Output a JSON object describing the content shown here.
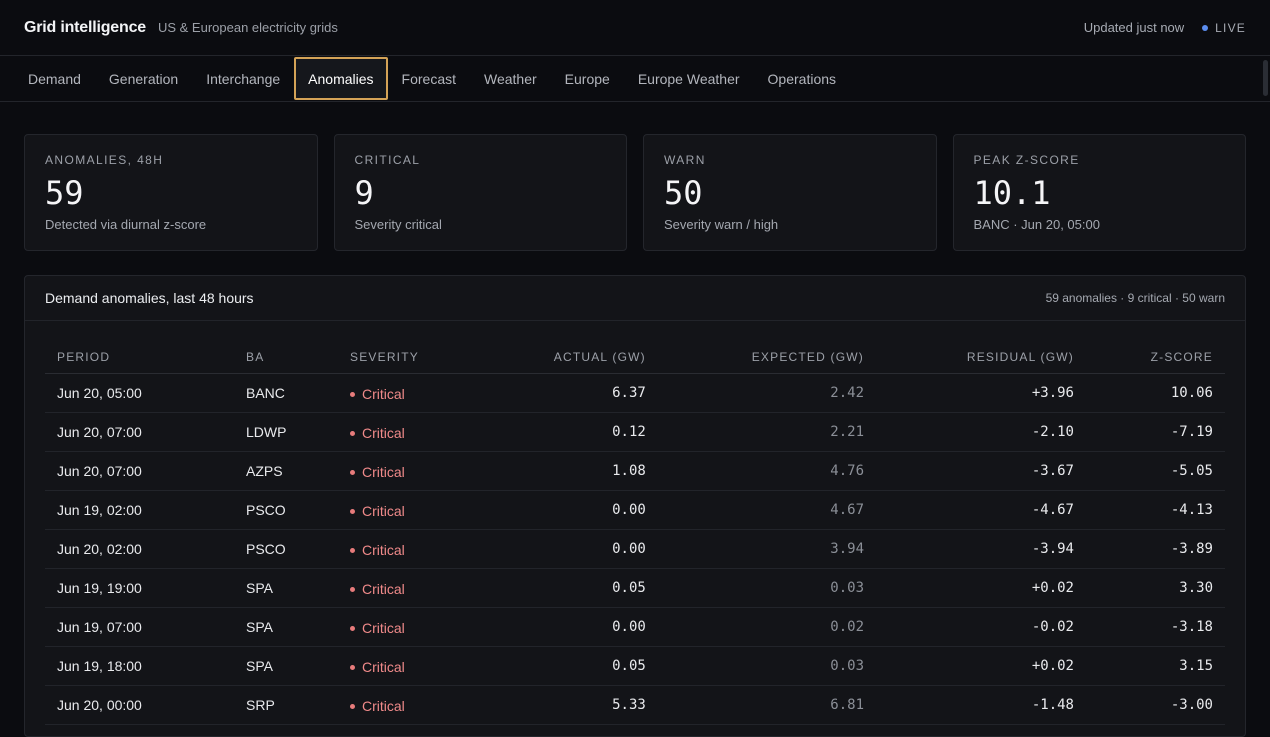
{
  "header": {
    "title": "Grid intelligence",
    "subtitle": "US & European electricity grids",
    "updated": "Updated just now",
    "live": "LIVE"
  },
  "tabs": [
    {
      "label": "Demand"
    },
    {
      "label": "Generation"
    },
    {
      "label": "Interchange"
    },
    {
      "label": "Anomalies"
    },
    {
      "label": "Forecast"
    },
    {
      "label": "Weather"
    },
    {
      "label": "Europe"
    },
    {
      "label": "Europe Weather"
    },
    {
      "label": "Operations"
    }
  ],
  "active_tab": "Anomalies",
  "cards": [
    {
      "label": "ANOMALIES, 48H",
      "value": "59",
      "note": "Detected via diurnal z-score"
    },
    {
      "label": "CRITICAL",
      "value": "9",
      "note": "Severity critical"
    },
    {
      "label": "WARN",
      "value": "50",
      "note": "Severity warn / high"
    },
    {
      "label": "PEAK Z-SCORE",
      "value": "10.1",
      "note": "BANC · Jun 20, 05:00"
    }
  ],
  "panel": {
    "title": "Demand anomalies, last 48 hours",
    "summary": "59 anomalies · 9 critical · 50 warn"
  },
  "table": {
    "columns": [
      "PERIOD",
      "BA",
      "SEVERITY",
      "ACTUAL (GW)",
      "EXPECTED (GW)",
      "RESIDUAL (GW)",
      "Z-SCORE"
    ],
    "rows": [
      [
        "Jun 20, 05:00",
        "BANC",
        "Critical",
        "6.37",
        "2.42",
        "+3.96",
        "10.06"
      ],
      [
        "Jun 20, 07:00",
        "LDWP",
        "Critical",
        "0.12",
        "2.21",
        "-2.10",
        "-7.19"
      ],
      [
        "Jun 20, 07:00",
        "AZPS",
        "Critical",
        "1.08",
        "4.76",
        "-3.67",
        "-5.05"
      ],
      [
        "Jun 19, 02:00",
        "PSCO",
        "Critical",
        "0.00",
        "4.67",
        "-4.67",
        "-4.13"
      ],
      [
        "Jun 20, 02:00",
        "PSCO",
        "Critical",
        "0.00",
        "3.94",
        "-3.94",
        "-3.89"
      ],
      [
        "Jun 19, 19:00",
        "SPA",
        "Critical",
        "0.05",
        "0.03",
        "+0.02",
        "3.30"
      ],
      [
        "Jun 19, 07:00",
        "SPA",
        "Critical",
        "0.00",
        "0.02",
        "-0.02",
        "-3.18"
      ],
      [
        "Jun 19, 18:00",
        "SPA",
        "Critical",
        "0.05",
        "0.03",
        "+0.02",
        "3.15"
      ],
      [
        "Jun 20, 00:00",
        "SRP",
        "Critical",
        "5.33",
        "6.81",
        "-1.48",
        "-3.00"
      ]
    ]
  },
  "colors": {
    "accent_active_tab_border": "#d4a357",
    "live_dot": "#5b8def",
    "critical": "#f08a8a"
  }
}
